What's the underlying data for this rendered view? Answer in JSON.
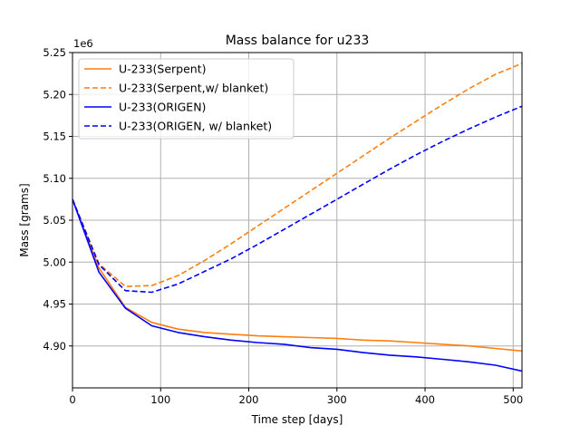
{
  "chart_data": {
    "type": "line",
    "title": "Mass balance for u233",
    "xlabel": "Time step [days]",
    "ylabel": "Mass [grams]",
    "y_offset_label": "1e6",
    "xlim": [
      0,
      510
    ],
    "ylim": [
      4.85,
      5.25
    ],
    "xticks": [
      0,
      100,
      200,
      300,
      400,
      500
    ],
    "yticks": [
      4.9,
      4.95,
      5.0,
      5.05,
      5.1,
      5.15,
      5.2,
      5.25
    ],
    "xtick_labels": [
      "0",
      "100",
      "200",
      "300",
      "400",
      "500"
    ],
    "ytick_labels": [
      "4.90",
      "4.95",
      "5.00",
      "5.05",
      "5.10",
      "5.15",
      "5.20",
      "5.25"
    ],
    "grid": true,
    "legend_position": "top-left",
    "series": [
      {
        "name": "U-233(Serpent)",
        "color": "#ff7f0e",
        "style": "solid",
        "x": [
          0,
          30,
          60,
          90,
          120,
          150,
          180,
          210,
          240,
          270,
          300,
          330,
          360,
          390,
          420,
          450,
          480,
          510
        ],
        "y": [
          5.075,
          4.993,
          4.946,
          4.928,
          4.92,
          4.916,
          4.914,
          4.912,
          4.911,
          4.91,
          4.909,
          4.907,
          4.906,
          4.904,
          4.902,
          4.9,
          4.897,
          4.894
        ]
      },
      {
        "name": "U-233(Serpent,w/ blanket)",
        "color": "#ff7f0e",
        "style": "dashed",
        "x": [
          0,
          30,
          60,
          90,
          120,
          150,
          180,
          210,
          240,
          270,
          300,
          330,
          360,
          390,
          420,
          450,
          480,
          510
        ],
        "y": [
          5.075,
          4.998,
          4.971,
          4.972,
          4.984,
          5.002,
          5.022,
          5.043,
          5.064,
          5.085,
          5.106,
          5.127,
          5.148,
          5.168,
          5.188,
          5.207,
          5.224,
          5.237
        ]
      },
      {
        "name": "U-233(ORIGEN)",
        "color": "#0000ff",
        "style": "solid",
        "x": [
          0,
          30,
          60,
          90,
          120,
          150,
          180,
          210,
          240,
          270,
          300,
          330,
          360,
          390,
          420,
          450,
          480,
          510
        ],
        "y": [
          5.075,
          4.988,
          4.945,
          4.924,
          4.916,
          4.911,
          4.907,
          4.904,
          4.902,
          4.898,
          4.896,
          4.892,
          4.889,
          4.887,
          4.884,
          4.881,
          4.877,
          4.87
        ]
      },
      {
        "name": "U-233(ORIGEN, w/ blanket)",
        "color": "#0000ff",
        "style": "dashed",
        "x": [
          0,
          30,
          60,
          90,
          120,
          150,
          180,
          210,
          240,
          270,
          300,
          330,
          360,
          390,
          420,
          450,
          480,
          510
        ],
        "y": [
          5.075,
          4.997,
          4.966,
          4.964,
          4.974,
          4.989,
          5.004,
          5.021,
          5.039,
          5.057,
          5.075,
          5.093,
          5.111,
          5.128,
          5.144,
          5.159,
          5.173,
          5.186
        ]
      }
    ]
  }
}
